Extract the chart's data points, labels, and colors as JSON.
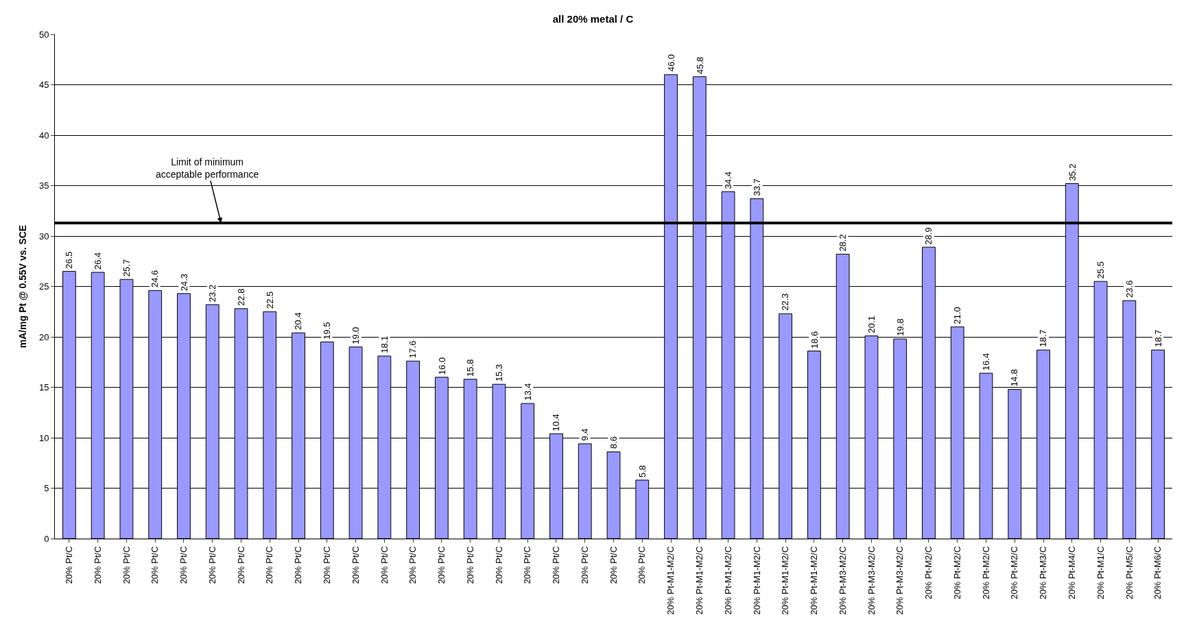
{
  "chart_data": {
    "type": "bar",
    "title": "all 20% metal / C",
    "ylabel": "mA/mg Pt @ 0.55V vs. SCE",
    "categories": [
      "20% Pt/C",
      "20% Pt/C",
      "20% Pt/C",
      "20% Pt/C",
      "20% Pt/C",
      "20% Pt/C",
      "20% Pt/C",
      "20% Pt/C",
      "20% Pt/C",
      "20% Pt/C",
      "20% Pt/C",
      "20% Pt/C",
      "20% Pt/C",
      "20% Pt/C",
      "20% Pt/C",
      "20% Pt/C",
      "20% Pt/C",
      "20% Pt/C",
      "20% Pt/C",
      "20% Pt/C",
      "20% Pt/C",
      "20% Pt-M1-M2/C",
      "20% Pt-M1-M2/C",
      "20% Pt-M1-M2/C",
      "20% Pt-M1-M2/C",
      "20% Pt-M1-M2/C",
      "20% Pt-M1-M2/C",
      "20% Pt-M3-M2/C",
      "20% Pt-M3-M2/C",
      "20% Pt-M3-M2/C",
      "20% Pt-M2/C",
      "20% Pt-M2/C",
      "20% Pt-M2/C",
      "20% Pt-M2/C",
      "20% Pt-M3/C",
      "20% Pt-M4/C",
      "20% Pt-M1/C",
      "20% Pt-M5/C",
      "20% Pt-M6/C"
    ],
    "values": [
      26.5,
      26.4,
      25.7,
      24.6,
      24.3,
      23.2,
      22.8,
      22.5,
      20.4,
      19.5,
      19.0,
      18.1,
      17.6,
      16.0,
      15.8,
      15.3,
      13.4,
      10.4,
      9.4,
      8.6,
      5.8,
      46.0,
      45.8,
      34.4,
      33.7,
      22.3,
      18.6,
      28.2,
      20.1,
      19.8,
      28.9,
      21.0,
      16.4,
      14.8,
      18.7,
      35.2,
      25.5,
      23.6,
      18.7
    ],
    "value_labels": [
      "26.5",
      "26.4",
      "25.7",
      "24.6",
      "24.3",
      "23.2",
      "22.8",
      "22.5",
      "20.4",
      "19.5",
      "19.0",
      "18.1",
      "17.6",
      "16.0",
      "15.8",
      "15.3",
      "13.4",
      "10.4",
      "9.4",
      "8.6",
      "5.8",
      "46.0",
      "45.8",
      "34.4",
      "33.7",
      "22.3",
      "18.6",
      "28.2",
      "20.1",
      "19.8",
      "28.9",
      "21.0",
      "16.4",
      "14.8",
      "18.7",
      "35.2",
      "25.5",
      "23.6",
      "18.7"
    ],
    "color": "#9999ff",
    "ylim": [
      0,
      50
    ],
    "yticks": [
      0,
      5,
      10,
      15,
      20,
      25,
      30,
      35,
      40,
      45,
      50
    ],
    "grid": "y",
    "ref_lines": [
      {
        "axis": "y",
        "value": 31.3,
        "label": "Limit of minimum\nacceptable performance",
        "color": "#000000"
      }
    ]
  }
}
